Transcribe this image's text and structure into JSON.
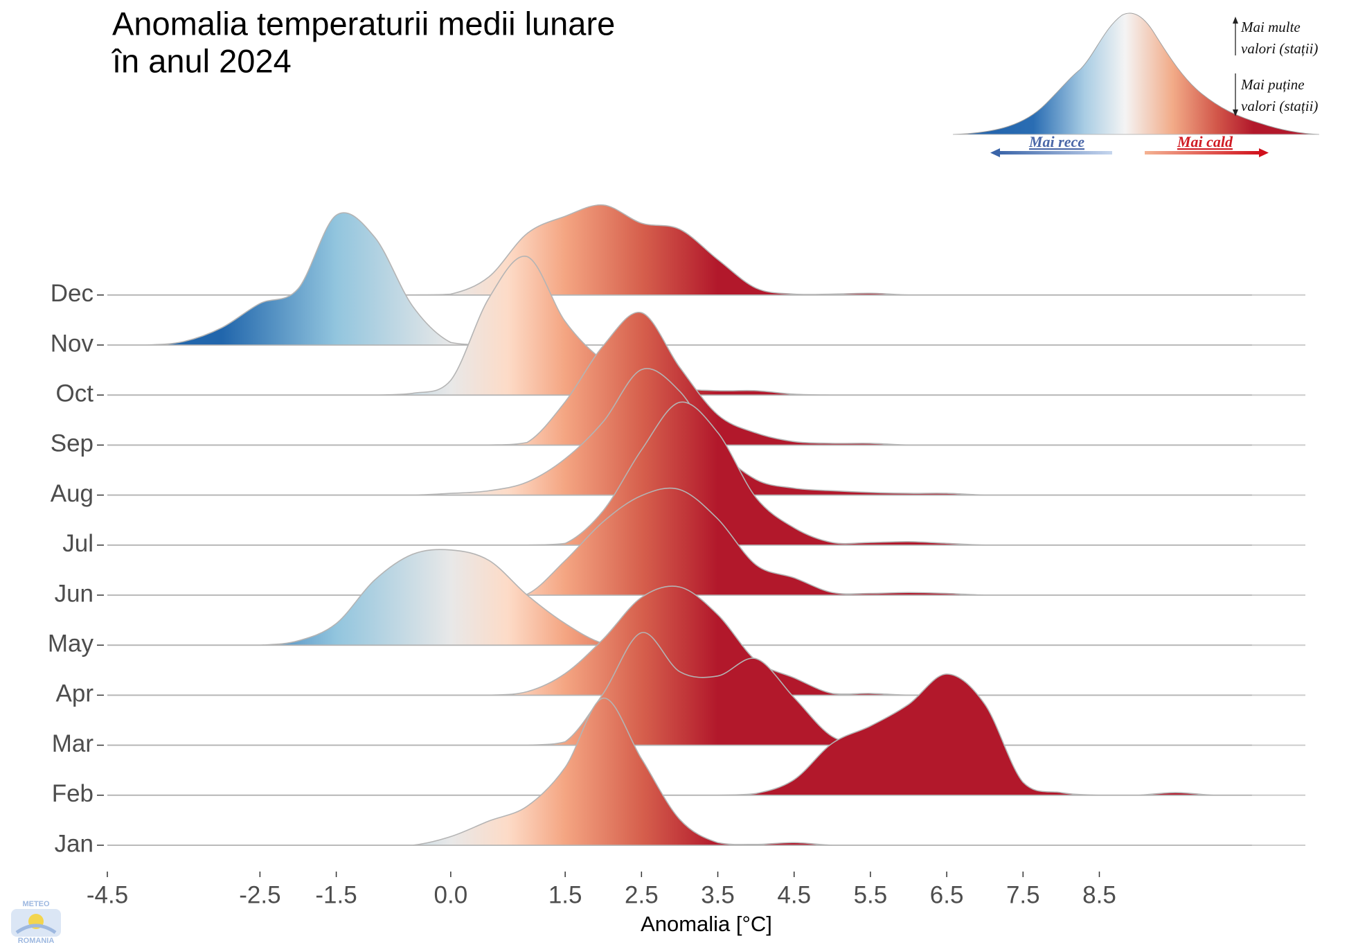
{
  "chart_data": {
    "type": "ridgeline",
    "title": [
      "Anomalia temperaturii medii lunare",
      "în anul 2024"
    ],
    "x_label": "Anomalia [°C]",
    "categories": [
      "Jan",
      "Feb",
      "Mar",
      "Apr",
      "May",
      "Jun",
      "Jul",
      "Aug",
      "Sep",
      "Oct",
      "Nov",
      "Dec"
    ],
    "x": [
      -4.5,
      -4,
      -3.5,
      -3,
      -2.5,
      -2,
      -1.5,
      -1,
      -0.5,
      0,
      0.5,
      1,
      1.5,
      2,
      2.5,
      3,
      3.5,
      4,
      4.5,
      5,
      5.5,
      6,
      6.5,
      7,
      7.5,
      8,
      8.5,
      9,
      9.5,
      10,
      10.5
    ],
    "series": [
      {
        "values": [
          0,
          0,
          0,
          0,
          0,
          0,
          0,
          0,
          0,
          0.1,
          0.28,
          0.45,
          0.9,
          1.7,
          1.0,
          0.3,
          0.03,
          0.01,
          0.03,
          0,
          0,
          0,
          0,
          0,
          0,
          0,
          0,
          0,
          0,
          0,
          0
        ]
      },
      {
        "values": [
          0,
          0,
          0,
          0,
          0,
          0,
          0,
          0,
          0,
          0,
          0,
          0,
          0,
          0,
          0,
          0,
          0,
          0.02,
          0.18,
          0.6,
          0.8,
          1.05,
          1.4,
          1.05,
          0.15,
          0.03,
          0,
          0,
          0.03,
          0,
          0
        ]
      },
      {
        "values": [
          0,
          0,
          0,
          0,
          0,
          0,
          0,
          0,
          0,
          0,
          0,
          0,
          0.04,
          0.6,
          1.3,
          0.85,
          0.8,
          1.0,
          0.55,
          0.1,
          0.01,
          0,
          0,
          0,
          0,
          0,
          0,
          0,
          0,
          0,
          0
        ]
      },
      {
        "values": [
          0,
          0,
          0,
          0,
          0,
          0,
          0,
          0,
          0,
          0,
          0,
          0.04,
          0.25,
          0.65,
          1.13,
          1.25,
          0.93,
          0.4,
          0.2,
          0.02,
          0.02,
          0,
          0,
          0,
          0,
          0,
          0,
          0,
          0,
          0,
          0
        ]
      },
      {
        "values": [
          0,
          0,
          0,
          0,
          0,
          0.05,
          0.25,
          0.75,
          1.05,
          1.1,
          0.98,
          0.58,
          0.25,
          0.02,
          0,
          0,
          0,
          0,
          0,
          0,
          0,
          0,
          0,
          0,
          0,
          0,
          0,
          0,
          0,
          0,
          0
        ]
      },
      {
        "values": [
          0,
          0,
          0,
          0,
          0,
          0,
          0,
          0,
          0,
          0,
          0,
          0.01,
          0.4,
          0.85,
          1.15,
          1.22,
          0.88,
          0.35,
          0.2,
          0.03,
          0.02,
          0.03,
          0.02,
          0,
          0,
          0,
          0,
          0,
          0,
          0,
          0
        ]
      },
      {
        "values": [
          0,
          0,
          0,
          0,
          0,
          0,
          0,
          0,
          0,
          0,
          0,
          0,
          0.02,
          0.4,
          1.1,
          1.65,
          1.3,
          0.55,
          0.2,
          0.03,
          0.03,
          0.04,
          0.02,
          0,
          0,
          0,
          0,
          0,
          0,
          0,
          0
        ]
      },
      {
        "values": [
          0,
          0,
          0,
          0,
          0,
          0,
          0,
          0,
          0,
          0.02,
          0.05,
          0.15,
          0.42,
          0.85,
          1.45,
          1.2,
          0.55,
          0.18,
          0.08,
          0.05,
          0.03,
          0.02,
          0.02,
          0,
          0,
          0,
          0,
          0,
          0,
          0,
          0
        ]
      },
      {
        "values": [
          0,
          0,
          0,
          0,
          0,
          0,
          0,
          0,
          0,
          0,
          0,
          0.03,
          0.5,
          1.15,
          1.53,
          0.9,
          0.35,
          0.14,
          0.04,
          0.02,
          0.02,
          0,
          0,
          0,
          0,
          0,
          0,
          0,
          0,
          0,
          0
        ]
      },
      {
        "values": [
          0,
          0,
          0,
          0,
          0,
          0,
          0,
          0,
          0.02,
          0.17,
          1.12,
          1.6,
          0.85,
          0.4,
          0.2,
          0.08,
          0.05,
          0.05,
          0.01,
          0,
          0,
          0,
          0,
          0,
          0,
          0,
          0,
          0,
          0,
          0,
          0
        ]
      },
      {
        "values": [
          0,
          0,
          0.04,
          0.2,
          0.48,
          0.65,
          1.5,
          1.25,
          0.45,
          0.03,
          0,
          0,
          0,
          0,
          0,
          0,
          0,
          0,
          0,
          0,
          0,
          0,
          0,
          0,
          0,
          0,
          0,
          0,
          0,
          0,
          0
        ]
      },
      {
        "values": [
          0,
          0,
          0,
          0,
          0,
          0,
          0,
          0,
          0,
          0.01,
          0.21,
          0.71,
          0.91,
          1.04,
          0.83,
          0.76,
          0.41,
          0.08,
          0.01,
          0.01,
          0.02,
          0,
          0,
          0,
          0,
          0,
          0,
          0,
          0,
          0,
          0
        ]
      }
    ],
    "xlim": [
      -4.5,
      11.2
    ],
    "xticks": [
      -4.5,
      -2.5,
      -1.5,
      {
        "value": 0,
        "label": "0.0"
      },
      1.5,
      2.5,
      3.5,
      4.5,
      5.5,
      6.5,
      7.5,
      8.5
    ],
    "fill_scale": [
      {
        "value": -3,
        "color": "#2166ac"
      },
      {
        "value": -1.5,
        "color": "#92c5de"
      },
      {
        "value": 0,
        "color": "#e8e8e8"
      },
      {
        "value": 0.75,
        "color": "#fddbc7"
      },
      {
        "value": 1.5,
        "color": "#f4a582"
      },
      {
        "value": 2.5,
        "color": "#d6604d"
      },
      {
        "value": 3.5,
        "color": "#b2182b"
      }
    ],
    "outline_color": "#b4b4b4",
    "legend_key": {
      "more": [
        "Mai multe",
        "valori (stații)"
      ],
      "fewer": [
        "Mai puține",
        "valori (stații)"
      ],
      "colder": "Mai rece",
      "warmer": "Mai cald"
    },
    "logo": [
      "METEO",
      "ROMANIA"
    ]
  }
}
